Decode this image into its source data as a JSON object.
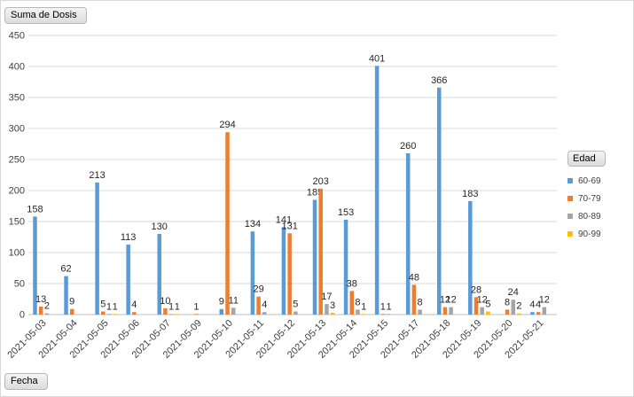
{
  "value_field": "Suma de Dosis",
  "axis_field": "Fecha",
  "legend_field": "Edad",
  "chart_data": {
    "type": "bar",
    "categories": [
      "2021-05-03",
      "2021-05-04",
      "2021-05-05",
      "2021-05-06",
      "2021-05-07",
      "2021-05-09",
      "2021-05-10",
      "2021-05-11",
      "2021-05-12",
      "2021-05-13",
      "2021-05-14",
      "2021-05-15",
      "2021-05-17",
      "2021-05-18",
      "2021-05-19",
      "2021-05-20",
      "2021-05-21"
    ],
    "ylim": [
      0,
      450
    ],
    "yticks": [
      0,
      50,
      100,
      150,
      200,
      250,
      300,
      350,
      400,
      450
    ],
    "grid": true,
    "legend_position": "right",
    "series": [
      {
        "name": "60-69",
        "color": "#5b9bd5",
        "values": [
          158,
          62,
          213,
          113,
          130,
          null,
          9,
          134,
          141,
          185,
          153,
          401,
          260,
          366,
          183,
          null,
          4
        ]
      },
      {
        "name": "70-79",
        "color": "#ed7d31",
        "values": [
          13,
          9,
          5,
          4,
          10,
          1,
          294,
          29,
          131,
          203,
          38,
          1,
          48,
          12,
          28,
          8,
          4
        ]
      },
      {
        "name": "80-89",
        "color": "#a5a5a5",
        "values": [
          2,
          null,
          1,
          null,
          1,
          null,
          11,
          4,
          5,
          17,
          8,
          1,
          8,
          12,
          12,
          24,
          12
        ]
      },
      {
        "name": "90-99",
        "color": "#ffc000",
        "values": [
          null,
          null,
          1,
          null,
          1,
          null,
          null,
          null,
          null,
          3,
          1,
          null,
          null,
          null,
          5,
          2,
          null
        ]
      }
    ]
  }
}
